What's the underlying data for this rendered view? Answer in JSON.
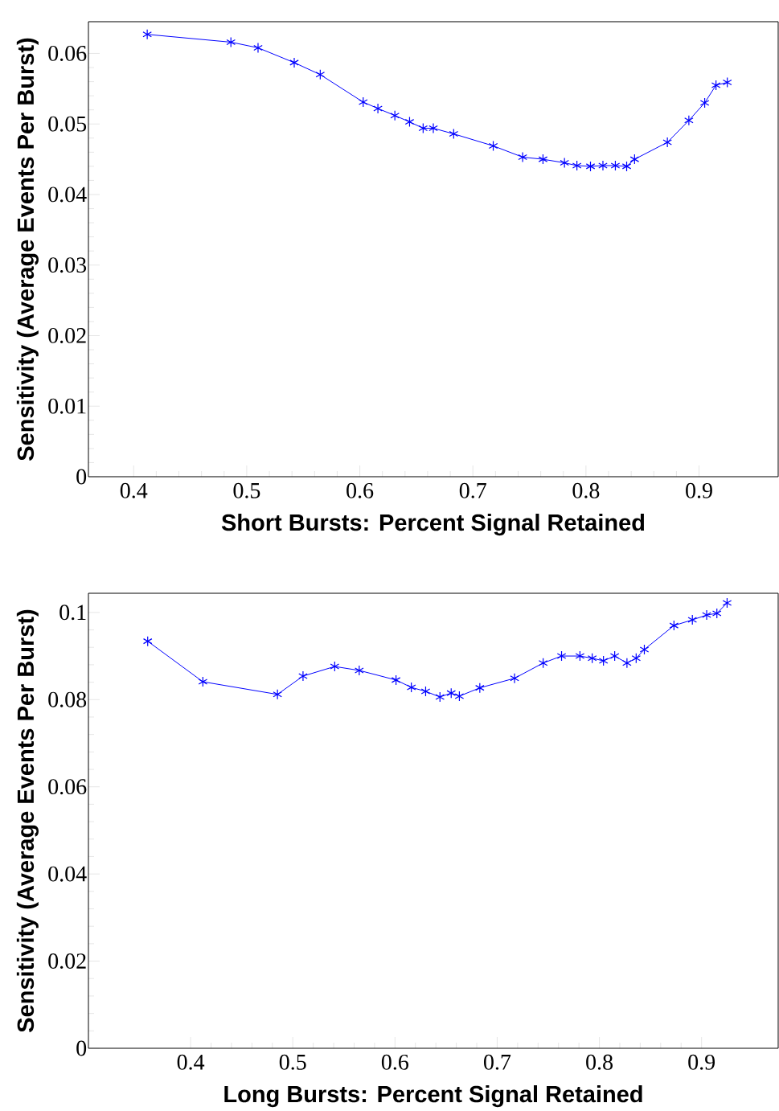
{
  "chart_data": [
    {
      "type": "line",
      "xlabel": "Short Bursts: Percent Signal Retained",
      "ylabel": "Sensitivity (Average Events Per Burst)",
      "marker": "cross",
      "xlim": [
        0.36,
        0.97
      ],
      "ylim": [
        0,
        0.0645
      ],
      "xticks": [
        0.4,
        0.5,
        0.6,
        0.7,
        0.8,
        0.9
      ],
      "yticks": [
        0,
        0.01,
        0.02,
        0.03,
        0.04,
        0.05,
        0.06
      ],
      "x": [
        0.412,
        0.486,
        0.51,
        0.542,
        0.565,
        0.603,
        0.616,
        0.631,
        0.644,
        0.656,
        0.665,
        0.683,
        0.718,
        0.744,
        0.762,
        0.781,
        0.792,
        0.804,
        0.815,
        0.826,
        0.836,
        0.843,
        0.872,
        0.891,
        0.905,
        0.915,
        0.925
      ],
      "series": [
        {
          "color": "#0000ff",
          "values": [
            0.0627,
            0.0616,
            0.0608,
            0.0587,
            0.057,
            0.0531,
            0.0522,
            0.0512,
            0.0503,
            0.0494,
            0.0494,
            0.0486,
            0.0469,
            0.0453,
            0.045,
            0.0445,
            0.0441,
            0.044,
            0.0441,
            0.0441,
            0.044,
            0.045,
            0.0474,
            0.0505,
            0.053,
            0.0555,
            0.0559
          ]
        }
      ]
    },
    {
      "type": "line",
      "xlabel": "Long Bursts: Percent Signal Retained",
      "ylabel": "Sensitivity (Average Events Per Burst)",
      "marker": "cross",
      "xlim": [
        0.3,
        0.975
      ],
      "ylim": [
        0,
        0.1044
      ],
      "xticks": [
        0.4,
        0.5,
        0.6,
        0.7,
        0.8,
        0.9
      ],
      "yticks": [
        0,
        0.02,
        0.04,
        0.06,
        0.08,
        0.1
      ],
      "x": [
        0.358,
        0.412,
        0.485,
        0.51,
        0.541,
        0.565,
        0.601,
        0.616,
        0.63,
        0.644,
        0.655,
        0.663,
        0.683,
        0.717,
        0.745,
        0.763,
        0.781,
        0.793,
        0.804,
        0.815,
        0.827,
        0.836,
        0.844,
        0.873,
        0.891,
        0.905,
        0.915,
        0.925
      ],
      "series": [
        {
          "color": "#0000ff",
          "values": [
            0.0934,
            0.0841,
            0.0812,
            0.0854,
            0.0876,
            0.0867,
            0.0845,
            0.0828,
            0.0819,
            0.0806,
            0.0815,
            0.0808,
            0.0827,
            0.0849,
            0.0884,
            0.09,
            0.09,
            0.0895,
            0.0889,
            0.09,
            0.0884,
            0.0895,
            0.0915,
            0.097,
            0.0983,
            0.0994,
            0.0998,
            0.1022
          ]
        }
      ]
    }
  ]
}
